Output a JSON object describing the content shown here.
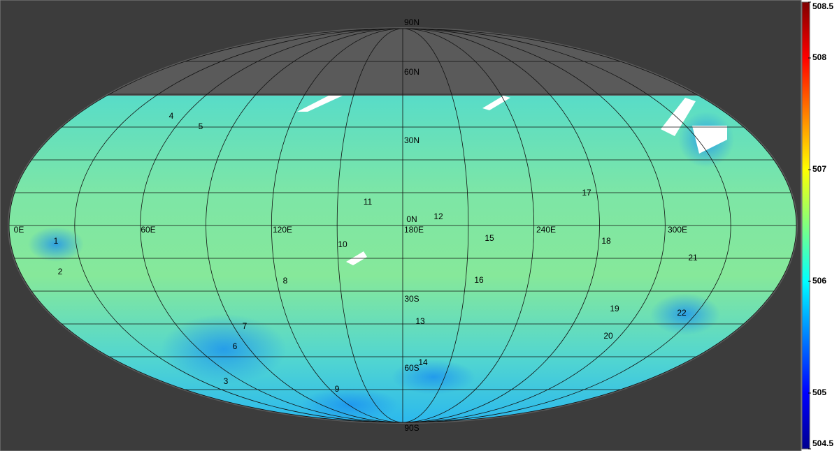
{
  "map": {
    "latitude_labels": [
      "90N",
      "60N",
      "30N",
      "0N",
      "30S",
      "60S",
      "90S"
    ],
    "longitude_labels": [
      "0E",
      "60E",
      "120E",
      "180E",
      "240E",
      "300E"
    ],
    "sites": [
      "1",
      "2",
      "3",
      "4",
      "5",
      "6",
      "7",
      "8",
      "9",
      "10",
      "11",
      "12",
      "13",
      "14",
      "15",
      "16",
      "17",
      "18",
      "19",
      "20",
      "21",
      "22"
    ],
    "colorbar": {
      "lim": [
        504.5,
        508.5
      ],
      "ticks": [
        504.5,
        505,
        506,
        507,
        508,
        508.5
      ]
    }
  }
}
